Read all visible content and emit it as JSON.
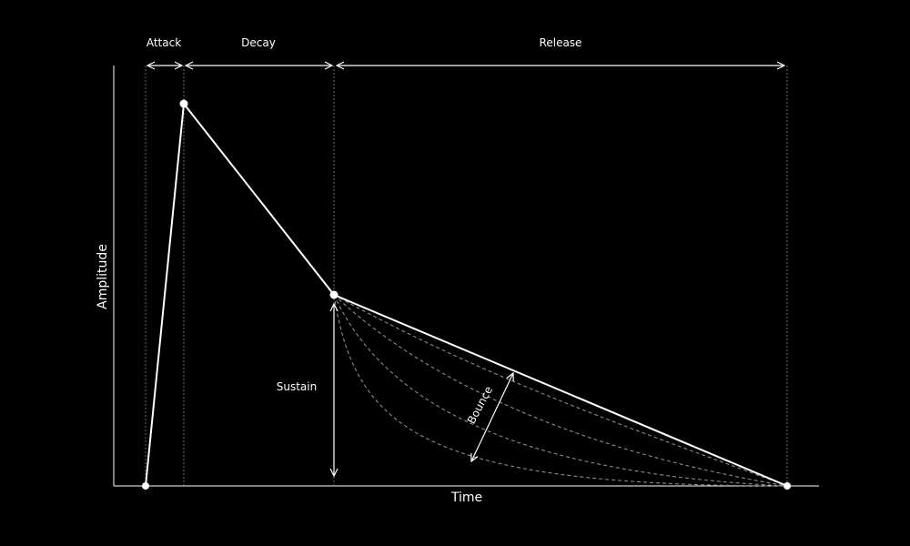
{
  "colors": {
    "background": "#000000",
    "foreground": "#ffffff",
    "guide": "#8a8a8a"
  },
  "labels": {
    "attack": "Attack",
    "decay": "Decay",
    "release": "Release",
    "sustain": "Sustain",
    "bounce": "Bounce",
    "x_axis": "Time",
    "y_axis": "Amplitude"
  }
}
